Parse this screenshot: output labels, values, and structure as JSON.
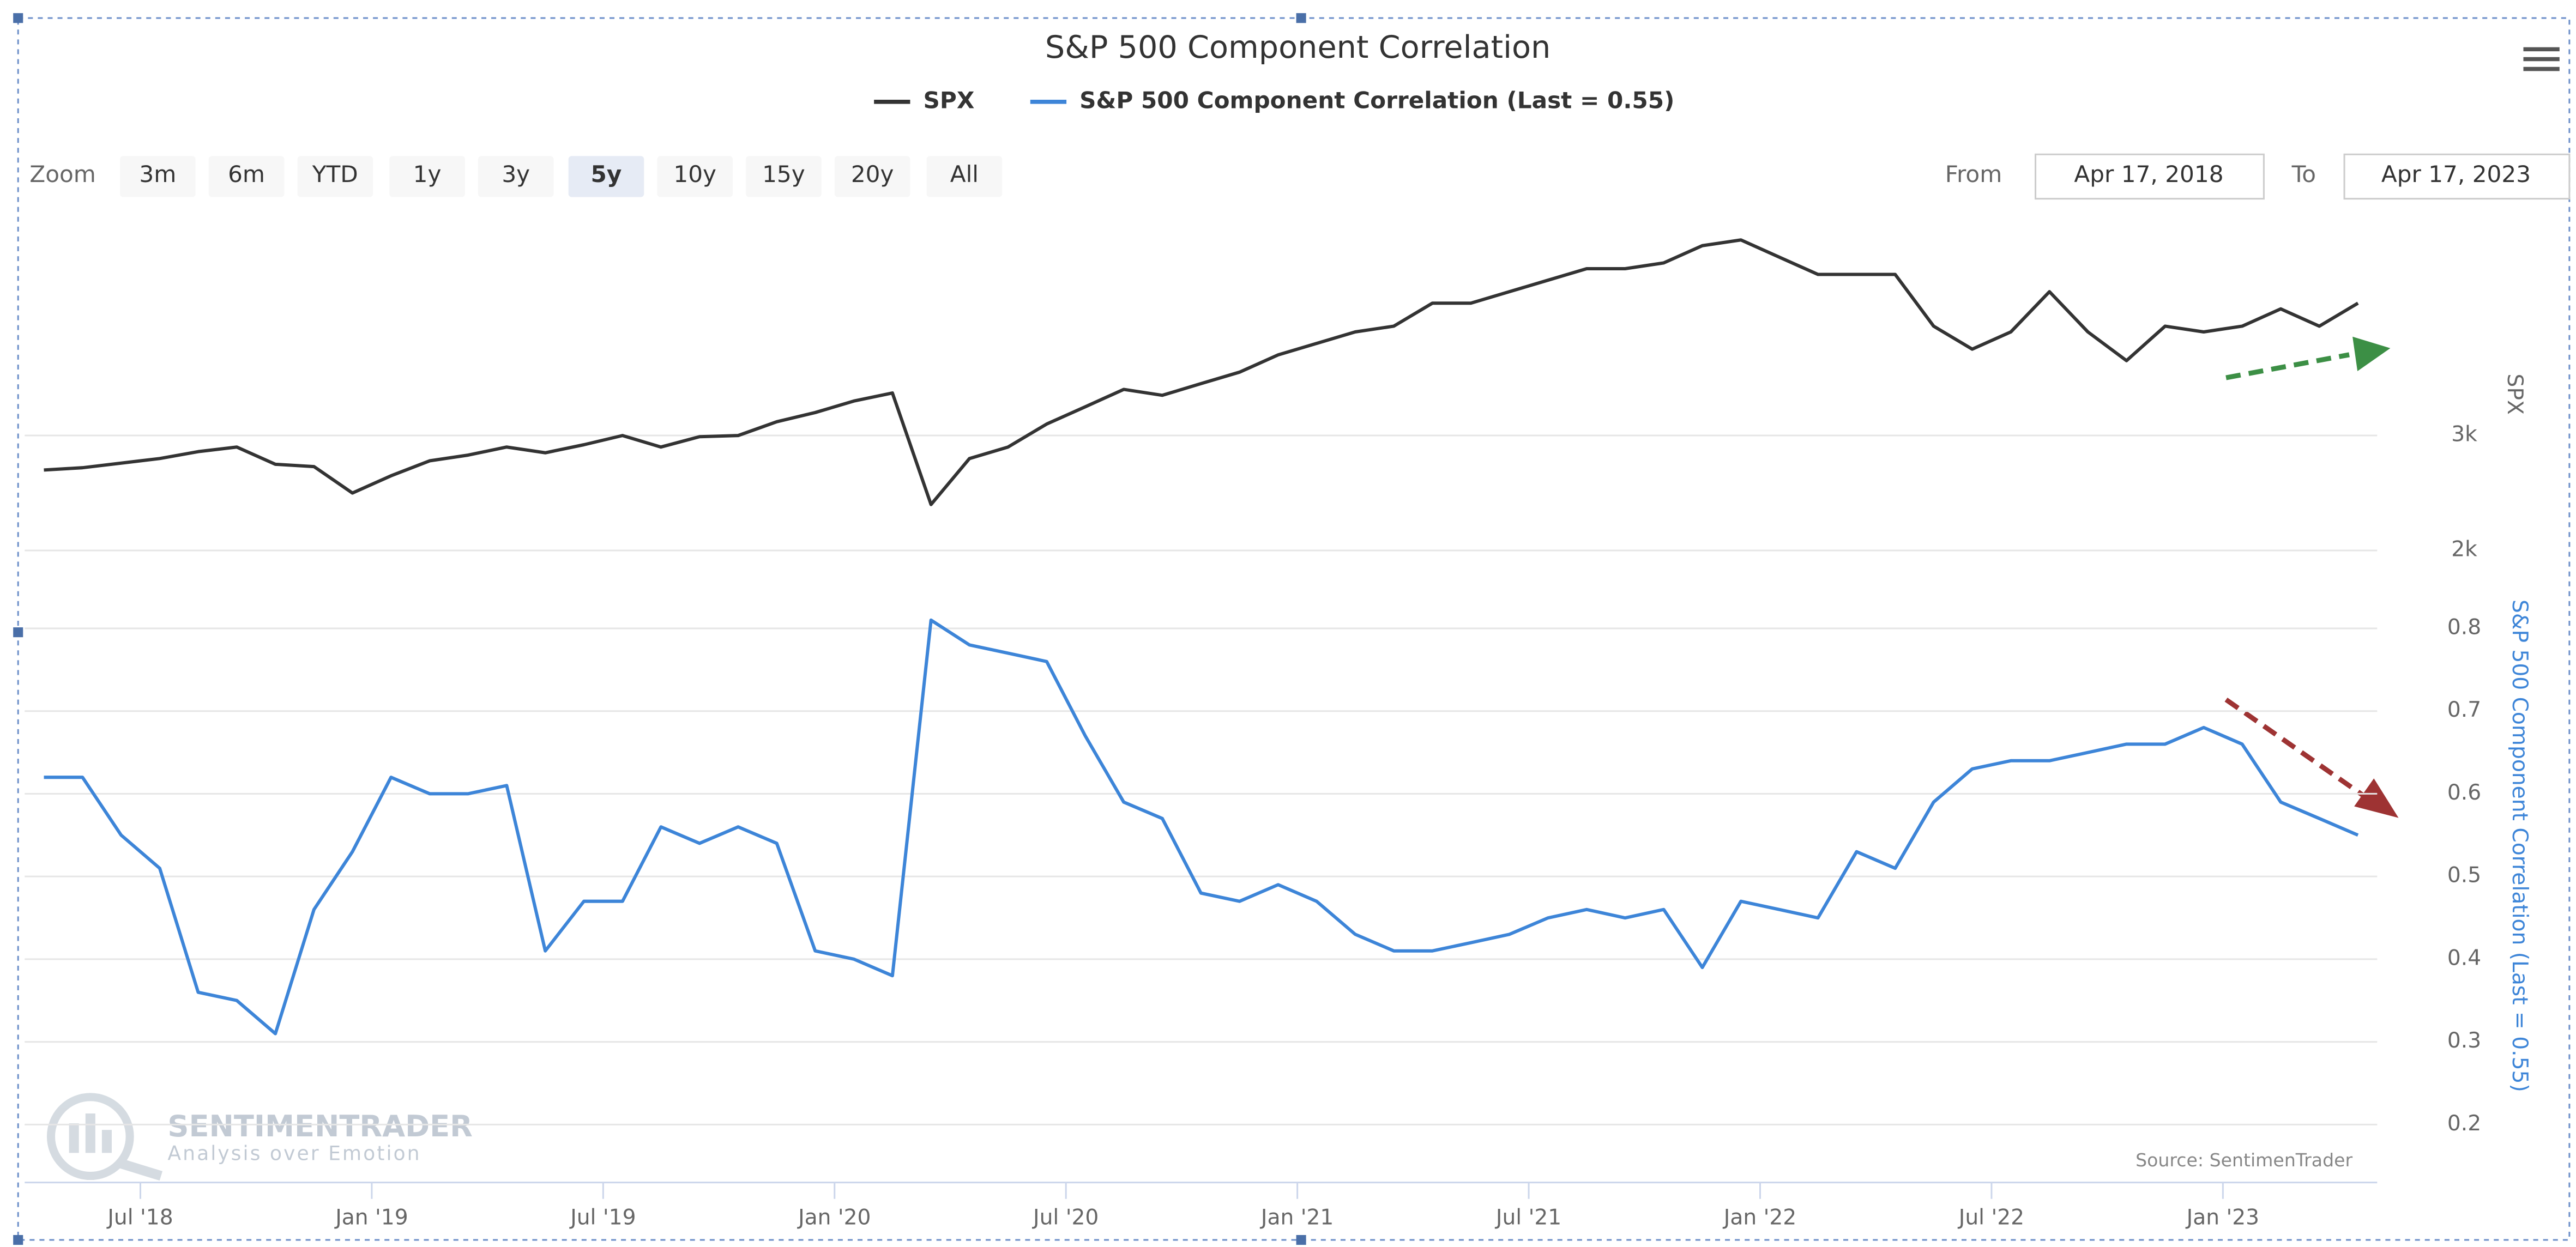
{
  "chart_data": {
    "type": "line",
    "title": "S&P 500 Component Correlation",
    "x": [
      "2018-04",
      "2018-05",
      "2018-06",
      "2018-07",
      "2018-08",
      "2018-09",
      "2018-10",
      "2018-11",
      "2018-12",
      "2019-01",
      "2019-02",
      "2019-03",
      "2019-04",
      "2019-05",
      "2019-06",
      "2019-07",
      "2019-08",
      "2019-09",
      "2019-10",
      "2019-11",
      "2019-12",
      "2020-01",
      "2020-02",
      "2020-03",
      "2020-04",
      "2020-05",
      "2020-06",
      "2020-07",
      "2020-08",
      "2020-09",
      "2020-10",
      "2020-11",
      "2020-12",
      "2021-01",
      "2021-02",
      "2021-03",
      "2021-04",
      "2021-05",
      "2021-06",
      "2021-07",
      "2021-08",
      "2021-09",
      "2021-10",
      "2021-11",
      "2021-12",
      "2022-01",
      "2022-02",
      "2022-03",
      "2022-04",
      "2022-05",
      "2022-06",
      "2022-07",
      "2022-08",
      "2022-09",
      "2022-10",
      "2022-11",
      "2022-12",
      "2023-01",
      "2023-02",
      "2023-03",
      "2023-04"
    ],
    "series": [
      {
        "name": "SPX",
        "color": "#333333",
        "values": [
          2700,
          2720,
          2760,
          2800,
          2860,
          2900,
          2750,
          2730,
          2500,
          2650,
          2780,
          2830,
          2900,
          2850,
          2920,
          3000,
          2900,
          2990,
          3000,
          3120,
          3200,
          3300,
          3370,
          2400,
          2800,
          2900,
          3100,
          3250,
          3400,
          3350,
          3450,
          3550,
          3700,
          3800,
          3900,
          3950,
          4150,
          4150,
          4250,
          4350,
          4450,
          4450,
          4500,
          4650,
          4700,
          4550,
          4400,
          4400,
          4400,
          3950,
          3750,
          3900,
          4250,
          3900,
          3650,
          3950,
          3900,
          3950,
          4100,
          3950,
          4150
        ]
      },
      {
        "name": "S&P 500 Component Correlation (Last = 0.55)",
        "color": "#3d85d8",
        "axis": "y2",
        "values": [
          0.62,
          0.62,
          0.55,
          0.51,
          0.36,
          0.35,
          0.31,
          0.46,
          0.53,
          0.62,
          0.6,
          0.6,
          0.61,
          0.41,
          0.47,
          0.47,
          0.56,
          0.54,
          0.56,
          0.54,
          0.41,
          0.4,
          0.38,
          0.81,
          0.78,
          0.77,
          0.76,
          0.67,
          0.59,
          0.57,
          0.48,
          0.47,
          0.49,
          0.47,
          0.43,
          0.41,
          0.41,
          0.42,
          0.43,
          0.45,
          0.46,
          0.45,
          0.46,
          0.39,
          0.47,
          0.46,
          0.45,
          0.53,
          0.51,
          0.59,
          0.63,
          0.64,
          0.64,
          0.65,
          0.66,
          0.66,
          0.68,
          0.66,
          0.59,
          0.57,
          0.55
        ]
      }
    ],
    "ylim": [
      1860,
      4930
    ],
    "yticks": [
      {
        "value": 2000,
        "label": "2k"
      },
      {
        "value": 3000,
        "label": "3k"
      }
    ],
    "ylabel": "SPX",
    "y2lim": [
      0.13,
      0.835
    ],
    "y2ticks": [
      0.2,
      0.3,
      0.4,
      0.5,
      0.6,
      0.7,
      0.8
    ],
    "y2label": "S&P 500 Component Correlation (Last = 0.55)",
    "xlim": [
      "2018-04",
      "2023-04"
    ],
    "xticks": [
      {
        "value": "2018-07",
        "label": "Jul '18"
      },
      {
        "value": "2019-01",
        "label": "Jan '19"
      },
      {
        "value": "2019-07",
        "label": "Jul '19"
      },
      {
        "value": "2020-01",
        "label": "Jan '20"
      },
      {
        "value": "2020-07",
        "label": "Jul '20"
      },
      {
        "value": "2021-01",
        "label": "Jan '21"
      },
      {
        "value": "2021-07",
        "label": "Jul '21"
      },
      {
        "value": "2022-01",
        "label": "Jan '22"
      },
      {
        "value": "2022-07",
        "label": "Jul '22"
      },
      {
        "value": "2023-01",
        "label": "Jan '23"
      }
    ],
    "grid": true,
    "legend": "top",
    "source": "Source: SentimenTrader"
  },
  "range_selector": {
    "zoom_label": "Zoom",
    "buttons": [
      "3m",
      "6m",
      "YTD",
      "1y",
      "3y",
      "5y",
      "10y",
      "15y",
      "20y",
      "All"
    ],
    "selected": "5y",
    "from_label": "From",
    "from": "Apr 17, 2018",
    "to_label": "To",
    "to": "Apr 17, 2023"
  },
  "watermark": {
    "name": "SENTIMENTRADER",
    "tagline": "Analysis over Emotion"
  }
}
